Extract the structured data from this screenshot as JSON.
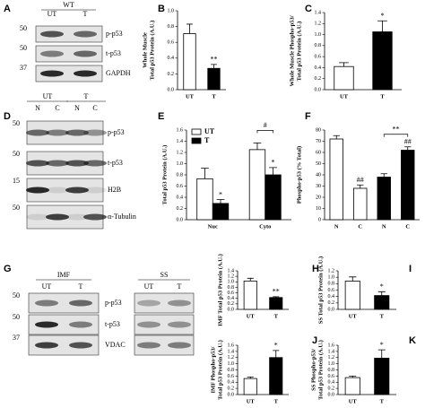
{
  "panels": {
    "letters": [
      "A",
      "B",
      "C",
      "D",
      "E",
      "F",
      "G",
      "H",
      "I",
      "J",
      "K"
    ]
  },
  "blots": [
    {
      "group_labels": [
        "WT"
      ],
      "lane_labels": [
        "UT",
        "T"
      ],
      "mw": [
        "50",
        "50",
        "37"
      ],
      "rows": [
        "p-p53",
        "t-p53",
        "GAPDH"
      ]
    },
    {
      "group_labels": [
        "UT",
        "T"
      ],
      "lane_labels": [
        "N",
        "C",
        "N",
        "C"
      ],
      "mw": [
        "50",
        "50",
        "15",
        "50"
      ],
      "rows": [
        "p-p53",
        "t-p53",
        "H2B",
        "α-Tubulin"
      ]
    },
    {
      "group_labels": [
        "IMF",
        "SS"
      ],
      "lane_labels": [
        "UT",
        "T",
        "UT",
        "T"
      ],
      "mw": [
        "50",
        "50",
        "37"
      ],
      "rows": [
        "p-p53",
        "t-p53",
        "VDAC"
      ]
    }
  ],
  "chart_data": [
    {
      "type": "bar",
      "ylabel": [
        "Whole Muscle",
        "Total p53 Protein (A.U.)"
      ],
      "categories": [
        "UT",
        "T"
      ],
      "values": [
        0.71,
        0.27
      ],
      "errors": [
        0.12,
        0.05
      ],
      "colors": [
        "#ffffff",
        "#000000"
      ],
      "annotations": [
        null,
        "**"
      ],
      "ylim": [
        0,
        1
      ],
      "yticks": [
        {
          "value": 0,
          "label": "0.0"
        },
        0.2,
        0.4,
        0.6,
        0.8,
        {
          "value": 1,
          "label": "1.0"
        }
      ]
    },
    {
      "type": "bar",
      "ylabel": [
        "Whole Muscle Phospho-p53/",
        "Total p53 Protein (A.U.)"
      ],
      "categories": [
        "UT",
        "T"
      ],
      "values": [
        0.42,
        1.05
      ],
      "errors": [
        0.07,
        0.2
      ],
      "colors": [
        "#ffffff",
        "#000000"
      ],
      "annotations": [
        null,
        "*"
      ],
      "ylim": [
        0,
        1.4
      ],
      "yticks": [
        {
          "value": 0,
          "label": "0.0"
        },
        0.2,
        0.4,
        0.6,
        0.8,
        {
          "value": 1,
          "label": "1.0"
        },
        1.2,
        1.4
      ]
    },
    {
      "type": "bar",
      "ylabel": [
        "Total p53 Protein (A.U.)"
      ],
      "categories": [
        "Nuc",
        "Cyto"
      ],
      "series": [
        {
          "name": "UT",
          "color": "#ffffff",
          "values": [
            0.73,
            1.25
          ],
          "errors": [
            0.19,
            0.12
          ],
          "annotations": [
            null,
            null
          ]
        },
        {
          "name": "T",
          "color": "#000000",
          "values": [
            0.29,
            0.8
          ],
          "errors": [
            0.07,
            0.13
          ],
          "annotations": [
            "*",
            "*"
          ]
        }
      ],
      "bracket": "#",
      "ylim": [
        0,
        1.6
      ],
      "yticks": [
        {
          "value": 0,
          "label": "0.0"
        },
        0.2,
        0.4,
        0.6,
        0.8,
        {
          "value": 1,
          "label": "1.0"
        },
        1.2,
        1.4,
        1.6
      ]
    },
    {
      "type": "bar",
      "ylabel": [
        "Phospho-p53 (% Total)"
      ],
      "categories": [
        "N",
        "C",
        "N",
        "C"
      ],
      "values": [
        72,
        28,
        38,
        62
      ],
      "errors": [
        3,
        3,
        3,
        3
      ],
      "colors": [
        "#ffffff",
        "#ffffff",
        "#000000",
        "#000000"
      ],
      "annotations": [
        null,
        "##",
        null,
        "##"
      ],
      "bracket": "**",
      "ylim": [
        0,
        80
      ],
      "yticks": [
        0,
        10,
        20,
        30,
        40,
        50,
        60,
        70,
        80
      ]
    },
    {
      "type": "bar",
      "ylabel": [
        "IMF Total p53 Protein (A.U.)"
      ],
      "categories": [
        "UT",
        "T"
      ],
      "values": [
        1.03,
        0.43
      ],
      "errors": [
        0.1,
        0.03
      ],
      "colors": [
        "#ffffff",
        "#000000"
      ],
      "annotations": [
        null,
        "**"
      ],
      "ylim": [
        0,
        1.4
      ],
      "yticks": [
        {
          "value": 0,
          "label": "0.0"
        },
        0.2,
        0.4,
        0.6,
        0.8,
        {
          "value": 1,
          "label": "1.0"
        },
        1.2,
        1.4
      ]
    },
    {
      "type": "bar",
      "ylabel": [
        "SS Total p53 Protein (A.U.)"
      ],
      "categories": [
        "UT",
        "T"
      ],
      "values": [
        0.88,
        0.43
      ],
      "errors": [
        0.13,
        0.12
      ],
      "colors": [
        "#ffffff",
        "#000000"
      ],
      "annotations": [
        null,
        "*"
      ],
      "ylim": [
        0,
        1.2
      ],
      "yticks": [
        {
          "value": 0,
          "label": "0.0"
        },
        0.2,
        0.4,
        0.6,
        0.8,
        {
          "value": 1,
          "label": "1.0"
        },
        1.2
      ]
    },
    {
      "type": "bar",
      "ylabel": [
        "IMF Phospho-p53/",
        "Total p53 Protein (A.U.)"
      ],
      "categories": [
        "UT",
        "T"
      ],
      "values": [
        0.52,
        1.2
      ],
      "errors": [
        0.05,
        0.23
      ],
      "colors": [
        "#ffffff",
        "#000000"
      ],
      "annotations": [
        null,
        "*"
      ],
      "ylim": [
        0,
        1.6
      ],
      "yticks": [
        {
          "value": 0,
          "label": "0.0"
        },
        0.2,
        0.4,
        0.6,
        0.8,
        {
          "value": 1,
          "label": "1.0"
        },
        1.2,
        1.4,
        1.6
      ]
    },
    {
      "type": "bar",
      "ylabel": [
        "SS Phospho-p53/",
        "Total p53 Protein (A.U.)"
      ],
      "categories": [
        "UT",
        "T"
      ],
      "values": [
        0.55,
        1.18
      ],
      "errors": [
        0.05,
        0.27
      ],
      "colors": [
        "#ffffff",
        "#000000"
      ],
      "annotations": [
        null,
        "*"
      ],
      "ylim": [
        0,
        1.6
      ],
      "yticks": [
        {
          "value": 0,
          "label": "0.0"
        },
        0.2,
        0.4,
        0.6,
        0.8,
        {
          "value": 1,
          "label": "1.0"
        },
        1.2,
        1.4,
        1.6
      ]
    }
  ]
}
